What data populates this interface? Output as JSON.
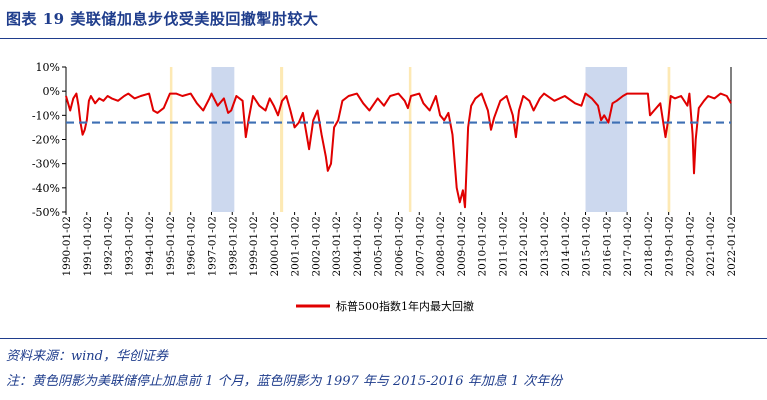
{
  "header": {
    "title": "图表 19   美联储加息步伐受美股回撤掣肘较大"
  },
  "footer": {
    "source": "资料来源：wind，华创证券",
    "note": "注：黄色阴影为美联储停止加息前 1 个月，蓝色阴影为 1997 年与 2015-2016 年加息 1 次年份"
  },
  "colors": {
    "series": "#e00000",
    "reference": "#3d6fb4",
    "shade_yellow": "#fde9b4",
    "shade_blue": "#ccd8ee",
    "brand": "#1f3d8c"
  },
  "chart_data": {
    "type": "line",
    "title": "",
    "xlabel": "",
    "ylabel": "",
    "ylim": [
      -50,
      10
    ],
    "y_ticks": [
      10,
      0,
      -10,
      -20,
      -30,
      -40,
      -50
    ],
    "y_tick_labels": [
      "10%",
      "0%",
      "-10%",
      "-20%",
      "-30%",
      "-40%",
      "-50%"
    ],
    "x_range": [
      1990.0,
      2022.0
    ],
    "x_ticks": [
      "1990-01-02",
      "1991-01-02",
      "1992-01-02",
      "1993-01-02",
      "1994-01-02",
      "1995-01-02",
      "1996-01-02",
      "1997-01-02",
      "1998-01-02",
      "1999-01-02",
      "2000-01-02",
      "2001-01-02",
      "2002-01-02",
      "2003-01-02",
      "2004-01-02",
      "2005-01-02",
      "2006-01-02",
      "2007-01-02",
      "2008-01-02",
      "2009-01-02",
      "2010-01-02",
      "2011-01-02",
      "2012-01-02",
      "2013-01-02",
      "2014-01-02",
      "2015-01-02",
      "2016-01-02",
      "2017-01-02",
      "2018-01-02",
      "2019-01-02",
      "2020-01-02",
      "2021-01-02",
      "2022-01-02"
    ],
    "legend": {
      "label": "标普500指数1年内最大回撤",
      "position": "bottom"
    },
    "reference_line": {
      "y": -13,
      "style": "dashed"
    },
    "shaded_periods": [
      {
        "start": 1995.0,
        "end": 1995.12,
        "color": "yellow"
      },
      {
        "start": 1997.0,
        "end": 1998.1,
        "color": "blue"
      },
      {
        "start": 2000.3,
        "end": 2000.45,
        "color": "yellow"
      },
      {
        "start": 2006.5,
        "end": 2006.62,
        "color": "yellow"
      },
      {
        "start": 2015.0,
        "end": 2017.0,
        "color": "blue"
      },
      {
        "start": 2018.95,
        "end": 2019.08,
        "color": "yellow"
      }
    ],
    "series": [
      {
        "name": "标普500指数1年内最大回撤",
        "x": [
          1990.0,
          1990.1,
          1990.2,
          1990.35,
          1990.5,
          1990.6,
          1990.7,
          1990.8,
          1990.9,
          1991.0,
          1991.1,
          1991.2,
          1991.4,
          1991.6,
          1991.8,
          1992.0,
          1992.2,
          1992.5,
          1992.8,
          1993.0,
          1993.3,
          1993.6,
          1994.0,
          1994.2,
          1994.4,
          1994.7,
          1995.0,
          1995.3,
          1995.6,
          1996.0,
          1996.3,
          1996.6,
          1996.9,
          1997.0,
          1997.3,
          1997.6,
          1997.8,
          1997.95,
          1998.2,
          1998.5,
          1998.65,
          1998.8,
          1999.0,
          1999.3,
          1999.6,
          1999.8,
          2000.0,
          2000.2,
          2000.4,
          2000.6,
          2000.8,
          2001.0,
          2001.2,
          2001.4,
          2001.7,
          2001.9,
          2002.1,
          2002.3,
          2002.5,
          2002.6,
          2002.75,
          2002.9,
          2003.1,
          2003.3,
          2003.6,
          2004.0,
          2004.3,
          2004.6,
          2005.0,
          2005.3,
          2005.6,
          2006.0,
          2006.3,
          2006.45,
          2006.6,
          2007.0,
          2007.2,
          2007.5,
          2007.8,
          2008.0,
          2008.2,
          2008.4,
          2008.6,
          2008.8,
          2008.95,
          2009.1,
          2009.2,
          2009.35,
          2009.5,
          2009.7,
          2010.0,
          2010.3,
          2010.45,
          2010.6,
          2010.9,
          2011.2,
          2011.5,
          2011.65,
          2011.8,
          2012.0,
          2012.3,
          2012.5,
          2012.8,
          2013.0,
          2013.5,
          2014.0,
          2014.5,
          2014.8,
          2015.0,
          2015.3,
          2015.6,
          2015.75,
          2015.9,
          2016.1,
          2016.3,
          2016.5,
          2016.8,
          2017.0,
          2017.5,
          2018.0,
          2018.1,
          2018.3,
          2018.6,
          2018.85,
          2018.98,
          2019.1,
          2019.3,
          2019.6,
          2019.9,
          2020.0,
          2020.15,
          2020.22,
          2020.3,
          2020.45,
          2020.7,
          2020.9,
          2021.2,
          2021.5,
          2021.8,
          2022.0
        ],
        "values": [
          -2,
          -5,
          -8,
          -3,
          -1,
          -6,
          -13,
          -18,
          -16,
          -12,
          -4,
          -2,
          -5,
          -3,
          -4,
          -2,
          -3,
          -4,
          -2,
          -1,
          -3,
          -2,
          -1,
          -8,
          -9,
          -7,
          -1,
          -1,
          -2,
          -1,
          -5,
          -8,
          -3,
          -1,
          -6,
          -3,
          -9,
          -8,
          -2,
          -4,
          -19,
          -11,
          -2,
          -6,
          -8,
          -3,
          -6,
          -10,
          -4,
          -2,
          -8,
          -15,
          -13,
          -9,
          -24,
          -12,
          -8,
          -18,
          -27,
          -33,
          -30,
          -15,
          -12,
          -4,
          -2,
          -1,
          -5,
          -8,
          -3,
          -6,
          -2,
          -1,
          -4,
          -7,
          -2,
          -1,
          -5,
          -8,
          -2,
          -10,
          -12,
          -9,
          -18,
          -40,
          -46,
          -41,
          -48,
          -15,
          -6,
          -3,
          -1,
          -8,
          -16,
          -11,
          -4,
          -2,
          -10,
          -19,
          -8,
          -2,
          -4,
          -8,
          -3,
          -1,
          -4,
          -2,
          -5,
          -6,
          -1,
          -3,
          -6,
          -12,
          -10,
          -13,
          -5,
          -4,
          -2,
          -1,
          -1,
          -1,
          -10,
          -8,
          -5,
          -19,
          -12,
          -2,
          -3,
          -2,
          -6,
          -1,
          -18,
          -34,
          -20,
          -7,
          -4,
          -2,
          -3,
          -1,
          -2,
          -5
        ]
      }
    ]
  }
}
